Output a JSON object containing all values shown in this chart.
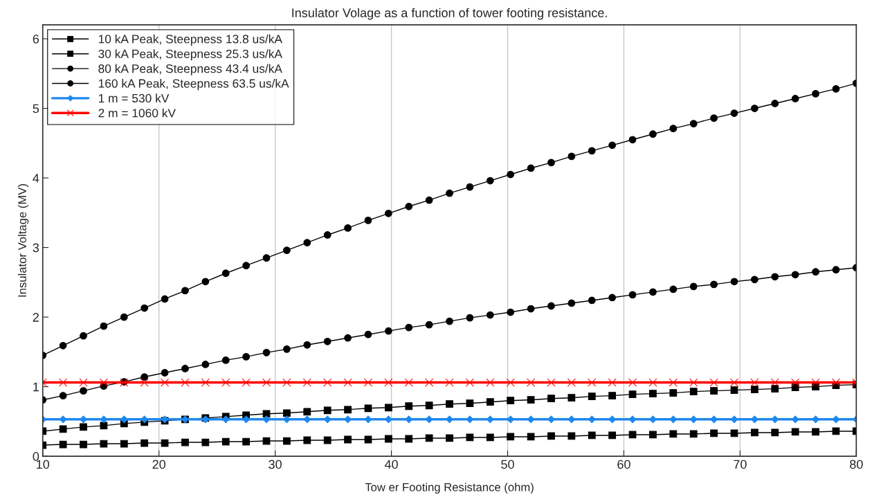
{
  "chart_data": {
    "type": "line",
    "title": "Insulator Volage as a function of tower footing resistance.",
    "xlabel": "Tow er Footing Resistance (ohm)",
    "ylabel": "Insulator Voltage (MV)",
    "x": [
      10,
      11.75,
      13.5,
      15.25,
      17,
      18.75,
      20.5,
      22.25,
      24,
      25.75,
      27.5,
      29.25,
      31,
      32.75,
      34.5,
      36.25,
      38,
      39.75,
      41.5,
      43.25,
      45,
      46.75,
      48.5,
      50.25,
      52,
      53.75,
      55.5,
      57.25,
      59,
      60.75,
      62.5,
      64.25,
      66,
      67.75,
      69.5,
      71.25,
      73,
      74.75,
      76.5,
      78.25,
      80
    ],
    "series": [
      {
        "name": "10 kA Peak, Steepness 13.8 us/kA",
        "color": "#000000",
        "marker": "square",
        "values": [
          0.16,
          0.17,
          0.17,
          0.18,
          0.18,
          0.19,
          0.19,
          0.2,
          0.2,
          0.21,
          0.21,
          0.22,
          0.22,
          0.23,
          0.23,
          0.24,
          0.24,
          0.25,
          0.25,
          0.26,
          0.26,
          0.27,
          0.27,
          0.28,
          0.28,
          0.29,
          0.29,
          0.3,
          0.3,
          0.31,
          0.31,
          0.32,
          0.32,
          0.33,
          0.33,
          0.34,
          0.34,
          0.35,
          0.35,
          0.36,
          0.36
        ]
      },
      {
        "name": "30 kA Peak, Steepness 25.3 us/kA",
        "color": "#000000",
        "marker": "square",
        "values": [
          0.36,
          0.39,
          0.42,
          0.44,
          0.47,
          0.49,
          0.51,
          0.53,
          0.55,
          0.57,
          0.59,
          0.61,
          0.62,
          0.64,
          0.66,
          0.67,
          0.69,
          0.7,
          0.72,
          0.73,
          0.75,
          0.76,
          0.78,
          0.8,
          0.81,
          0.83,
          0.84,
          0.86,
          0.87,
          0.89,
          0.9,
          0.91,
          0.93,
          0.94,
          0.95,
          0.96,
          0.97,
          0.99,
          1.0,
          1.02,
          1.03
        ]
      },
      {
        "name": "80 kA Peak, Steepness 43.4 us/kA",
        "color": "#000000",
        "marker": "circle",
        "values": [
          0.81,
          0.87,
          0.94,
          1.01,
          1.07,
          1.14,
          1.2,
          1.26,
          1.32,
          1.38,
          1.43,
          1.49,
          1.54,
          1.6,
          1.65,
          1.7,
          1.75,
          1.8,
          1.85,
          1.89,
          1.94,
          1.99,
          2.03,
          2.07,
          2.12,
          2.16,
          2.2,
          2.24,
          2.28,
          2.32,
          2.36,
          2.4,
          2.44,
          2.47,
          2.51,
          2.54,
          2.58,
          2.61,
          2.65,
          2.68,
          2.71
        ]
      },
      {
        "name": "160 kA Peak, Steepness 63.5 us/kA",
        "color": "#000000",
        "marker": "circle",
        "values": [
          1.45,
          1.59,
          1.73,
          1.87,
          2.0,
          2.13,
          2.26,
          2.38,
          2.51,
          2.63,
          2.74,
          2.85,
          2.96,
          3.07,
          3.18,
          3.28,
          3.39,
          3.49,
          3.59,
          3.68,
          3.78,
          3.87,
          3.96,
          4.05,
          4.14,
          4.22,
          4.31,
          4.39,
          4.47,
          4.55,
          4.63,
          4.71,
          4.78,
          4.86,
          4.93,
          5.0,
          5.07,
          5.14,
          5.21,
          5.28,
          5.36
        ]
      },
      {
        "name": "1 m = 530 kV",
        "color": "#1e88f0",
        "marker": "diamond",
        "values": [
          0.53,
          0.53,
          0.53,
          0.53,
          0.53,
          0.53,
          0.53,
          0.53,
          0.53,
          0.53,
          0.53,
          0.53,
          0.53,
          0.53,
          0.53,
          0.53,
          0.53,
          0.53,
          0.53,
          0.53,
          0.53,
          0.53,
          0.53,
          0.53,
          0.53,
          0.53,
          0.53,
          0.53,
          0.53,
          0.53,
          0.53,
          0.53,
          0.53,
          0.53,
          0.53,
          0.53,
          0.53,
          0.53,
          0.53,
          0.53,
          0.53
        ]
      },
      {
        "name": "2 m = 1060 kV",
        "color": "#ff0000",
        "marker": "cross",
        "values": [
          1.06,
          1.06,
          1.06,
          1.06,
          1.06,
          1.06,
          1.06,
          1.06,
          1.06,
          1.06,
          1.06,
          1.06,
          1.06,
          1.06,
          1.06,
          1.06,
          1.06,
          1.06,
          1.06,
          1.06,
          1.06,
          1.06,
          1.06,
          1.06,
          1.06,
          1.06,
          1.06,
          1.06,
          1.06,
          1.06,
          1.06,
          1.06,
          1.06,
          1.06,
          1.06,
          1.06,
          1.06,
          1.06,
          1.06,
          1.06,
          1.06
        ]
      }
    ],
    "xlim": [
      10,
      80
    ],
    "xticks": [
      10,
      20,
      30,
      40,
      50,
      60,
      70,
      80
    ],
    "ylim": [
      0,
      6.2
    ],
    "yticks": [
      0,
      1,
      2,
      3,
      4,
      5,
      6
    ],
    "grid": "x",
    "legend": "top left",
    "line_style": "solid"
  }
}
